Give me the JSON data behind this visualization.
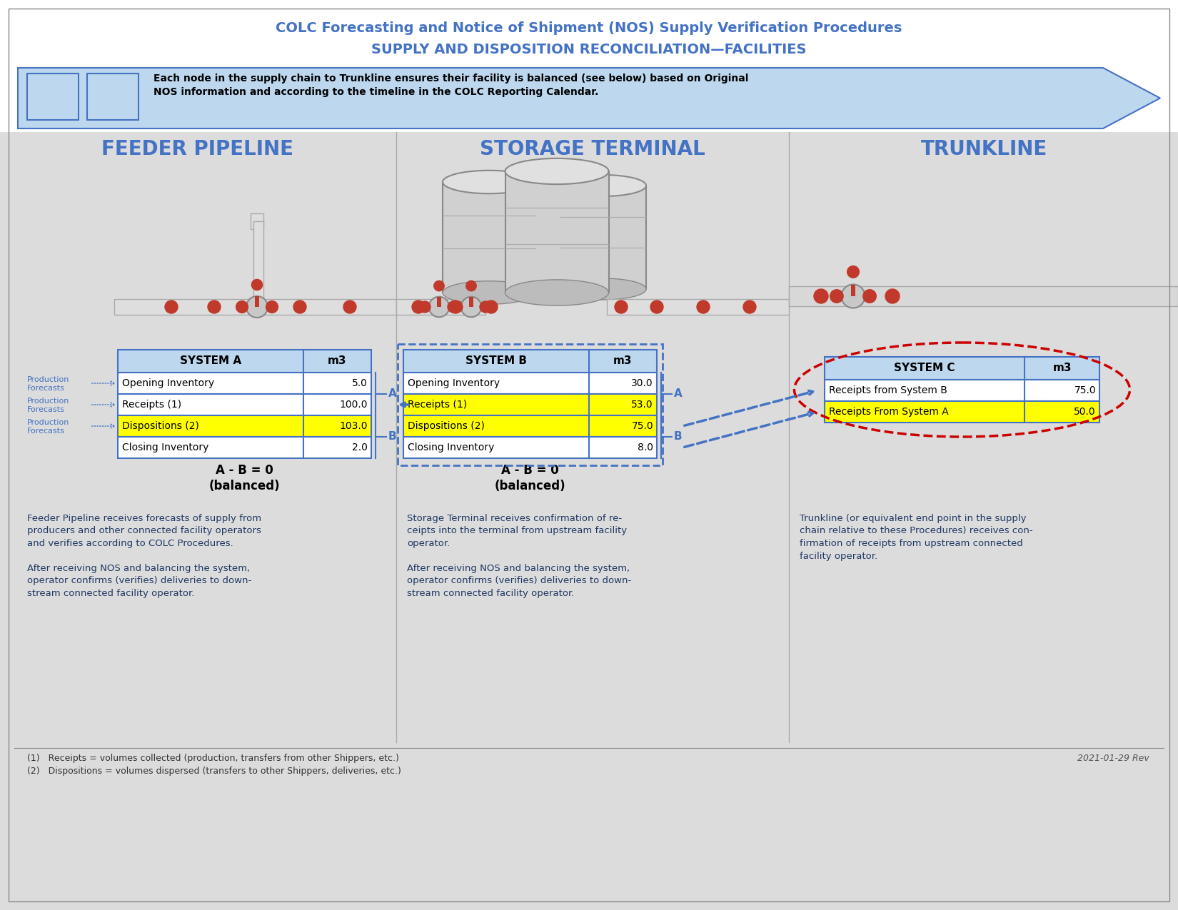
{
  "title_line1": "COLC Forecasting and Notice of Shipment (NOS) Supply Verification Procedures",
  "title_line2": "SUPPLY AND DISPOSITION RECONCILIATION—FACILITIES",
  "title_color": "#4472C4",
  "bg_color": "#FFFFFF",
  "gray_panel_color": "#DCDCDC",
  "header_arrow_color": "#BDD7EE",
  "header_arrow_edge": "#4472C4",
  "header_box_text": "Each node in the supply chain to Trunkline ensures their facility is balanced (see below) based on Original\nNOS information and according to the timeline in the COLC Reporting Calendar.",
  "section_titles": [
    "FEEDER PIPELINE",
    "STORAGE TERMINAL",
    "TRUNKLINE"
  ],
  "section_title_color": "#4472C4",
  "table_a_header": [
    "SYSTEM A",
    "m3"
  ],
  "table_a_rows": [
    [
      "Opening Inventory",
      "5.0",
      "white"
    ],
    [
      "Receipts (1)",
      "100.0",
      "white"
    ],
    [
      "Dispositions (2)",
      "103.0",
      "yellow"
    ],
    [
      "Closing Inventory",
      "2.0",
      "white"
    ]
  ],
  "table_a_balance": "A - B = 0\n(balanced)",
  "table_b_header": [
    "SYSTEM B",
    "m3"
  ],
  "table_b_rows": [
    [
      "Opening Inventory",
      "30.0",
      "white"
    ],
    [
      "Receipts (1)",
      "53.0",
      "yellow"
    ],
    [
      "Dispositions (2)",
      "75.0",
      "yellow"
    ],
    [
      "Closing Inventory",
      "8.0",
      "white"
    ]
  ],
  "table_b_balance": "A - B = 0\n(balanced)",
  "table_c_header": [
    "SYSTEM C",
    "m3"
  ],
  "table_c_rows": [
    [
      "Receipts from System B",
      "75.0",
      "white"
    ],
    [
      "Receipts From System A",
      "50.0",
      "yellow"
    ]
  ],
  "desc_a": "Feeder Pipeline receives forecasts of supply from\nproducers and other connected facility operators\nand verifies according to COLC Procedures.\n\nAfter receiving NOS and balancing the system,\noperator confirms (verifies) deliveries to down-\nstream connected facility operator.",
  "desc_b": "Storage Terminal receives confirmation of re-\nceipts into the terminal from upstream facility\noperator.\n\nAfter receiving NOS and balancing the system,\noperator confirms (verifies) deliveries to down-\nstream connected facility operator.",
  "desc_c": "Trunkline (or equivalent end point in the supply\nchain relative to these Procedures) receives con-\nfirmation of receipts from upstream connected\nfacility operator.",
  "footnote1": "(1)   Receipts = volumes collected (production, transfers from other Shippers, etc.)",
  "footnote2": "(2)   Dispositions = volumes dispersed (transfers to other Shippers, deliveries, etc.)",
  "date_text": "2021-01-29 Rev",
  "table_header_bg": "#BDD7EE",
  "table_border": "#4472C4",
  "yellow": "#FFFF00",
  "green": "#92D050",
  "text_dark": "#000000",
  "text_blue": "#4472C4",
  "prod_label_color": "#4472C4",
  "red_dashed": "#CC0000",
  "blue_dashed": "#4472C4"
}
